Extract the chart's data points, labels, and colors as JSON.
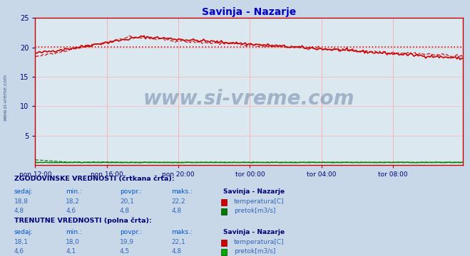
{
  "title": "Savinja - Nazarje",
  "title_color": "#0000cc",
  "bg_color": "#c8d8e8",
  "plot_bg_color": "#dce8f0",
  "grid_color": "#ffaaaa",
  "temp_color": "#cc0000",
  "flow_color": "#008800",
  "flow_color_dark": "#006600",
  "watermark": "www.si-vreme.com",
  "watermark_color": "#1a3a6e",
  "side_label": "www.si-vreme.com",
  "xlim": [
    0,
    287
  ],
  "ylim": [
    0,
    25
  ],
  "yticks": [
    5,
    10,
    15,
    20,
    25
  ],
  "xtick_labels": [
    "pon 12:00",
    "pon 16:00",
    "pon 20:00",
    "tor 00:00",
    "tor 04:00",
    "tor 08:00"
  ],
  "xtick_positions": [
    0,
    48,
    96,
    144,
    192,
    240
  ],
  "hist_temp_avg": 20.1,
  "hist_flow_avg": 0.5,
  "text_color_header": "#000077",
  "text_color_blue": "#0055cc",
  "text_color_bold": "#003388",
  "hist_vals": {
    "temp": [
      "18,8",
      "18,2",
      "20,1",
      "22,2"
    ],
    "flow": [
      "4,8",
      "4,6",
      "4,8",
      "4,8"
    ]
  },
  "curr_vals": {
    "temp": [
      "18,1",
      "18,0",
      "19,9",
      "22,1"
    ],
    "flow": [
      "4,6",
      "4,1",
      "4,5",
      "4,8"
    ]
  }
}
